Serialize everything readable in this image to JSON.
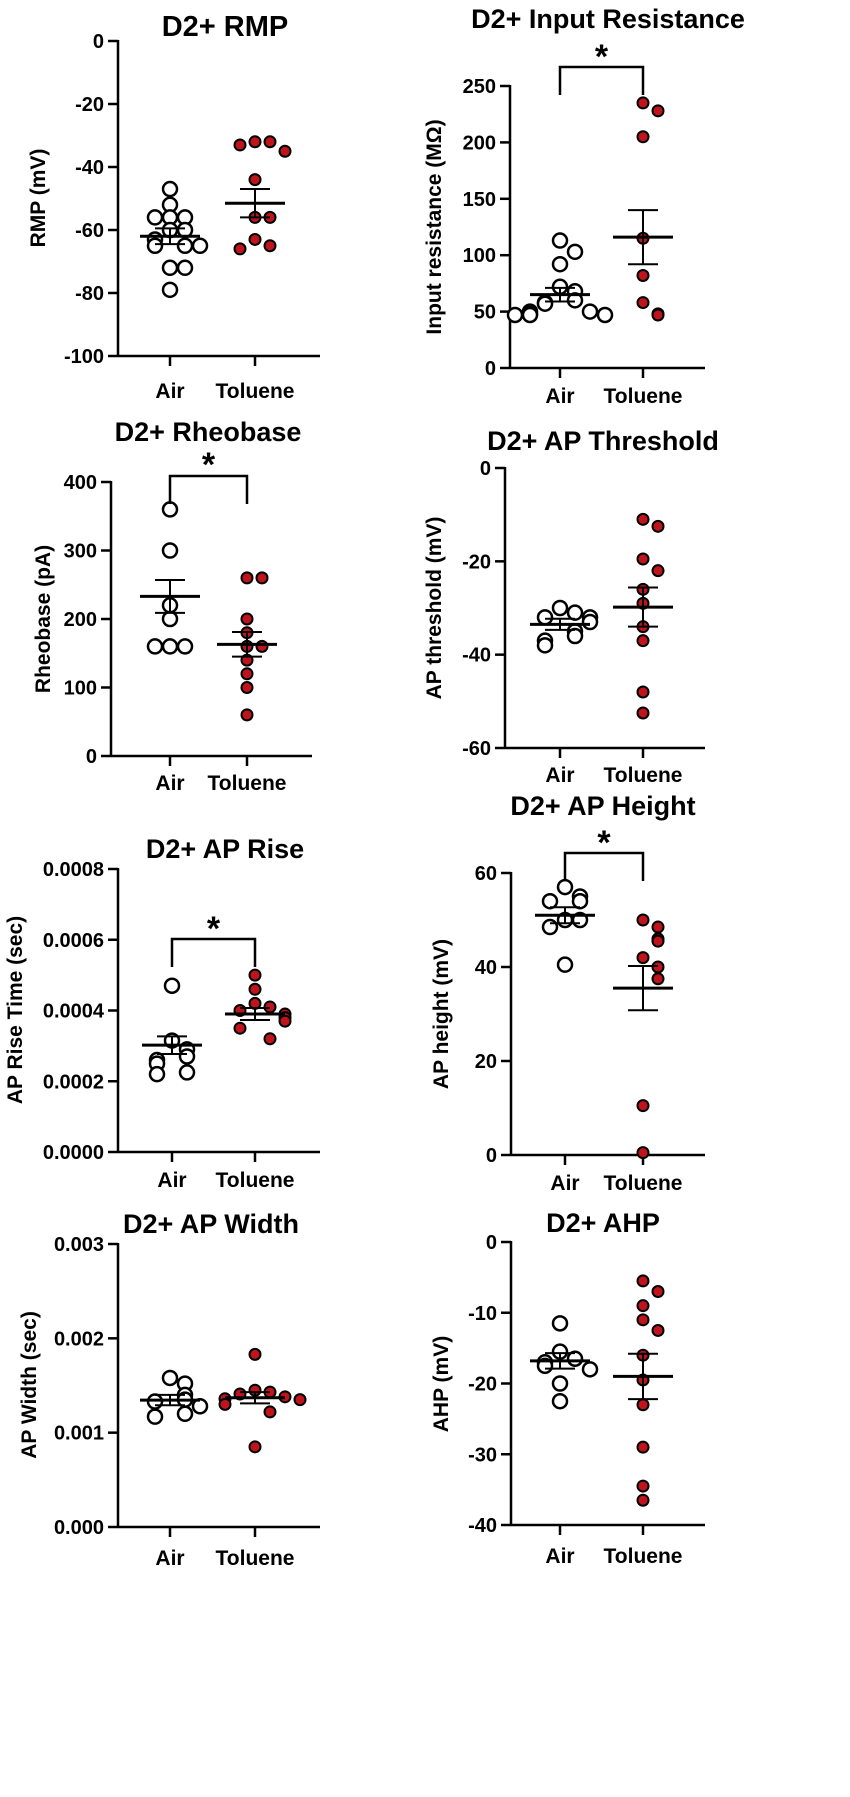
{
  "colors": {
    "air_fill": "#ffffff",
    "toluene_fill": "#c0141d",
    "stroke": "#000000"
  },
  "chart_data": [
    {
      "type": "scatter",
      "id": "rmp",
      "title": "D2+ RMP",
      "ylabel": "RMP (mV)",
      "ylim": [
        -100,
        0
      ],
      "yticks": [
        "0",
        "-20",
        "-40",
        "-60",
        "-80",
        "-100"
      ],
      "ytick_values": [
        0,
        -20,
        -40,
        -60,
        -80,
        -100
      ],
      "categories": [
        "Air",
        "Toluene"
      ],
      "series": [
        {
          "name": "Air",
          "mean": -62,
          "sem_low": -64.5,
          "sem_high": -59.5,
          "points": [
            -47,
            -52,
            -56,
            -56,
            -56,
            -60,
            -60,
            -63,
            -65,
            -65,
            -65,
            -72,
            -72,
            -79
          ]
        },
        {
          "name": "Toluene",
          "mean": -51.5,
          "sem_low": -56,
          "sem_high": -47,
          "points": [
            -32,
            -32,
            -33,
            -35,
            -44,
            -56,
            -56,
            -63,
            -65,
            -66
          ]
        }
      ],
      "significance": null
    },
    {
      "type": "scatter",
      "id": "input_resistance",
      "title": "D2+ Input Resistance",
      "ylabel": "Input resistance (MΩ)",
      "ylim": [
        0,
        250
      ],
      "yticks": [
        "250",
        "200",
        "150",
        "100",
        "50",
        "0"
      ],
      "ytick_values": [
        250,
        200,
        150,
        100,
        50,
        0
      ],
      "categories": [
        "Air",
        "Toluene"
      ],
      "series": [
        {
          "name": "Air",
          "mean": 65,
          "sem_low": 59,
          "sem_high": 71,
          "points": [
            113,
            103,
            92,
            72,
            68,
            60,
            58,
            57,
            50,
            50,
            48,
            47,
            47,
            47
          ]
        },
        {
          "name": "Toluene",
          "mean": 116,
          "sem_low": 92,
          "sem_high": 140,
          "points": [
            235,
            228,
            205,
            115,
            82,
            58,
            48,
            47
          ]
        }
      ],
      "significance": "*"
    },
    {
      "type": "scatter",
      "id": "rheobase",
      "title": "D2+ Rheobase",
      "ylabel": "Rheobase (pA)",
      "ylim": [
        0,
        400
      ],
      "yticks": [
        "400",
        "300",
        "200",
        "100",
        "0"
      ],
      "ytick_values": [
        400,
        300,
        200,
        100,
        0
      ],
      "categories": [
        "Air",
        "Toluene"
      ],
      "series": [
        {
          "name": "Air",
          "mean": 233,
          "sem_low": 209,
          "sem_high": 257,
          "points": [
            360,
            300,
            220,
            200,
            160,
            160,
            160
          ]
        },
        {
          "name": "Toluene",
          "mean": 163,
          "sem_low": 145,
          "sem_high": 181,
          "points": [
            260,
            260,
            200,
            180,
            160,
            160,
            140,
            120,
            100,
            60
          ]
        }
      ],
      "significance": "*"
    },
    {
      "type": "scatter",
      "id": "ap_threshold",
      "title": "D2+ AP Threshold",
      "ylabel": "AP threshold (mV)",
      "ylim": [
        -60,
        0
      ],
      "yticks": [
        "0",
        "-20",
        "-40",
        "-60"
      ],
      "ytick_values": [
        0,
        -20,
        -40,
        -60
      ],
      "categories": [
        "Air",
        "Toluene"
      ],
      "series": [
        {
          "name": "Air",
          "mean": -33.5,
          "sem_low": -34.7,
          "sem_high": -32.3,
          "points": [
            -30,
            -31,
            -32,
            -32,
            -33,
            -35,
            -36,
            -37,
            -38
          ]
        },
        {
          "name": "Toluene",
          "mean": -29.8,
          "sem_low": -34,
          "sem_high": -25.6,
          "points": [
            -11,
            -12.5,
            -19.5,
            -22,
            -26,
            -29,
            -34,
            -37,
            -48,
            -52.5
          ]
        }
      ],
      "significance": null
    },
    {
      "type": "scatter",
      "id": "ap_rise",
      "title": "D2+ AP Rise",
      "ylabel": "AP Rise Time (sec)",
      "ylim": [
        0,
        0.0008
      ],
      "yticks": [
        "0.0008",
        "0.0006",
        "0.0004",
        "0.0002",
        "0.0000"
      ],
      "ytick_values": [
        0.0008,
        0.0006,
        0.0004,
        0.0002,
        0
      ],
      "categories": [
        "Air",
        "Toluene"
      ],
      "series": [
        {
          "name": "Air",
          "mean": 0.000302,
          "sem_low": 0.000277,
          "sem_high": 0.000327,
          "points": [
            0.00047,
            0.000315,
            0.00029,
            0.00027,
            0.00026,
            0.00025,
            0.000225,
            0.00022
          ]
        },
        {
          "name": "Toluene",
          "mean": 0.00039,
          "sem_low": 0.000373,
          "sem_high": 0.000407,
          "points": [
            0.0005,
            0.00046,
            0.00042,
            0.00041,
            0.0004,
            0.00039,
            0.00038,
            0.00037,
            0.00035,
            0.00032
          ]
        }
      ],
      "significance": "*"
    },
    {
      "type": "scatter",
      "id": "ap_height",
      "title": "D2+ AP Height",
      "ylabel": "AP height (mV)",
      "ylim": [
        0,
        60
      ],
      "yticks": [
        "60",
        "40",
        "20",
        "0"
      ],
      "ytick_values": [
        60,
        40,
        20,
        0
      ],
      "categories": [
        "Air",
        "Toluene"
      ],
      "series": [
        {
          "name": "Air",
          "mean": 51,
          "sem_low": 49.3,
          "sem_high": 52.7,
          "points": [
            57,
            55,
            54,
            54,
            50,
            50,
            48.5,
            40.5
          ]
        },
        {
          "name": "Toluene",
          "mean": 35.5,
          "sem_low": 30.8,
          "sem_high": 40.2,
          "points": [
            50,
            48.5,
            46,
            45.5,
            42,
            40,
            37.5,
            10.5,
            0.5
          ]
        }
      ],
      "significance": "*"
    },
    {
      "type": "scatter",
      "id": "ap_width",
      "title": "D2+ AP Width",
      "ylabel": "AP Width (sec)",
      "ylim": [
        0,
        0.003
      ],
      "yticks": [
        "0.003",
        "0.002",
        "0.001",
        "0.000"
      ],
      "ytick_values": [
        0.003,
        0.002,
        0.001,
        0
      ],
      "categories": [
        "Air",
        "Toluene"
      ],
      "series": [
        {
          "name": "Air",
          "mean": 0.001345,
          "sem_low": 0.00129,
          "sem_high": 0.0014,
          "points": [
            0.00158,
            0.00152,
            0.0014,
            0.00135,
            0.00133,
            0.00128,
            0.0012,
            0.00117
          ]
        },
        {
          "name": "Toluene",
          "mean": 0.00137,
          "sem_low": 0.00131,
          "sem_high": 0.00143,
          "points": [
            0.00183,
            0.00145,
            0.00143,
            0.00141,
            0.00138,
            0.00136,
            0.00135,
            0.0013,
            0.00122,
            0.00085
          ]
        }
      ],
      "significance": null
    },
    {
      "type": "scatter",
      "id": "ahp",
      "title": "D2+ AHP",
      "ylabel": "AHP (mV)",
      "ylim": [
        -40,
        0
      ],
      "yticks": [
        "0",
        "-10",
        "-20",
        "-30",
        "-40"
      ],
      "ytick_values": [
        0,
        -10,
        -20,
        -30,
        -40
      ],
      "categories": [
        "Air",
        "Toluene"
      ],
      "series": [
        {
          "name": "Air",
          "mean": -16.8,
          "sem_low": -17.9,
          "sem_high": -15.7,
          "points": [
            -11.5,
            -15.5,
            -16.5,
            -17,
            -17.5,
            -18,
            -20,
            -22.5
          ]
        },
        {
          "name": "Toluene",
          "mean": -19,
          "sem_low": -22.2,
          "sem_high": -15.8,
          "points": [
            -5.5,
            -7,
            -9,
            -11,
            -12.5,
            -16,
            -19.5,
            -23,
            -29,
            -34.5,
            -36.5
          ]
        }
      ],
      "significance": null
    }
  ]
}
